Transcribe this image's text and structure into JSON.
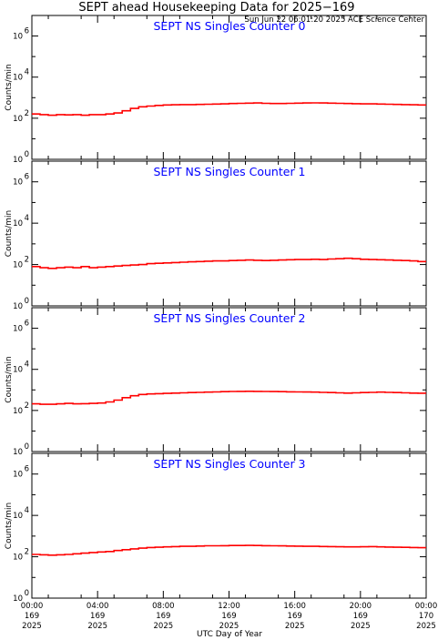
{
  "header": {
    "title": "SEPT ahead Housekeeping Data for 2025−169",
    "timestamp": "Sun Jun 22 06:01:20 2025 ACE Science Center"
  },
  "colors": {
    "panel_title": "#0000ff",
    "series": "#ff0000",
    "axes": "#000000"
  },
  "chart_data": [
    {
      "type": "line",
      "title": "SEPT NS Singles Counter 0",
      "ylabel": "Counts/min",
      "yscale": "log",
      "ylim": [
        1,
        10000000
      ],
      "step": true,
      "x": [
        0,
        0.5,
        1,
        1.5,
        2,
        2.5,
        3,
        3.5,
        4,
        4.5,
        5,
        5.5,
        6,
        6.5,
        7,
        7.5,
        8,
        8.5,
        9,
        9.5,
        10,
        10.5,
        11,
        11.5,
        12,
        12.5,
        13,
        13.5,
        14,
        14.5,
        15,
        15.5,
        16,
        16.5,
        17,
        17.5,
        18,
        18.5,
        19,
        19.5,
        20,
        20.5,
        21,
        21.5,
        22,
        22.5,
        23,
        23.5,
        24
      ],
      "values": [
        160,
        150,
        140,
        150,
        145,
        150,
        140,
        150,
        150,
        160,
        180,
        230,
        300,
        360,
        390,
        420,
        440,
        450,
        460,
        460,
        470,
        480,
        490,
        500,
        520,
        530,
        540,
        550,
        530,
        520,
        520,
        530,
        540,
        550,
        560,
        550,
        540,
        530,
        520,
        510,
        500,
        500,
        490,
        480,
        470,
        460,
        450,
        440,
        430
      ]
    },
    {
      "type": "line",
      "title": "SEPT NS Singles Counter 1",
      "ylabel": "Counts/min",
      "yscale": "log",
      "ylim": [
        1,
        10000000
      ],
      "step": true,
      "x": [
        0,
        0.5,
        1,
        1.5,
        2,
        2.5,
        3,
        3.5,
        4,
        4.5,
        5,
        5.5,
        6,
        6.5,
        7,
        7.5,
        8,
        8.5,
        9,
        9.5,
        10,
        10.5,
        11,
        11.5,
        12,
        12.5,
        13,
        13.5,
        14,
        14.5,
        15,
        15.5,
        16,
        16.5,
        17,
        17.5,
        18,
        18.5,
        19,
        19.5,
        20,
        20.5,
        21,
        21.5,
        22,
        22.5,
        23,
        23.5,
        24
      ],
      "values": [
        80,
        70,
        65,
        70,
        75,
        70,
        80,
        70,
        75,
        80,
        85,
        90,
        95,
        100,
        110,
        115,
        120,
        125,
        130,
        135,
        140,
        145,
        150,
        150,
        155,
        160,
        165,
        160,
        155,
        160,
        165,
        170,
        175,
        175,
        180,
        175,
        185,
        190,
        200,
        190,
        180,
        175,
        170,
        165,
        160,
        155,
        150,
        140,
        120
      ]
    },
    {
      "type": "line",
      "title": "SEPT NS Singles Counter 2",
      "ylabel": "Counts/min",
      "yscale": "log",
      "ylim": [
        1,
        10000000
      ],
      "step": true,
      "x": [
        0,
        0.5,
        1,
        1.5,
        2,
        2.5,
        3,
        3.5,
        4,
        4.5,
        5,
        5.5,
        6,
        6.5,
        7,
        7.5,
        8,
        8.5,
        9,
        9.5,
        10,
        10.5,
        11,
        11.5,
        12,
        12.5,
        13,
        13.5,
        14,
        14.5,
        15,
        15.5,
        16,
        16.5,
        17,
        17.5,
        18,
        18.5,
        19,
        19.5,
        20,
        20.5,
        21,
        21.5,
        22,
        22.5,
        23,
        23.5,
        24
      ],
      "values": [
        210,
        200,
        200,
        210,
        220,
        210,
        215,
        220,
        230,
        260,
        320,
        420,
        520,
        600,
        640,
        660,
        680,
        700,
        720,
        740,
        760,
        780,
        800,
        820,
        840,
        850,
        860,
        850,
        840,
        830,
        820,
        810,
        800,
        790,
        780,
        760,
        740,
        720,
        700,
        720,
        740,
        760,
        780,
        760,
        740,
        720,
        700,
        690,
        680
      ]
    },
    {
      "type": "line",
      "title": "SEPT NS Singles Counter 3",
      "ylabel": "Counts/min",
      "yscale": "log",
      "ylim": [
        1,
        10000000
      ],
      "step": true,
      "x": [
        0,
        0.5,
        1,
        1.5,
        2,
        2.5,
        3,
        3.5,
        4,
        4.5,
        5,
        5.5,
        6,
        6.5,
        7,
        7.5,
        8,
        8.5,
        9,
        9.5,
        10,
        10.5,
        11,
        11.5,
        12,
        12.5,
        13,
        13.5,
        14,
        14.5,
        15,
        15.5,
        16,
        16.5,
        17,
        17.5,
        18,
        18.5,
        19,
        19.5,
        20,
        20.5,
        21,
        21.5,
        22,
        22.5,
        23,
        23.5,
        24
      ],
      "values": [
        130,
        125,
        120,
        125,
        130,
        140,
        150,
        160,
        170,
        180,
        200,
        220,
        240,
        260,
        280,
        290,
        300,
        310,
        320,
        320,
        330,
        340,
        340,
        345,
        350,
        350,
        355,
        350,
        345,
        340,
        335,
        330,
        325,
        320,
        320,
        315,
        310,
        305,
        300,
        300,
        305,
        310,
        300,
        295,
        290,
        285,
        280,
        275,
        270
      ]
    }
  ],
  "y_axis": {
    "tick_values": [
      1,
      100,
      10000,
      1000000
    ],
    "tick_labels": [
      {
        "base": "10",
        "exp": "0"
      },
      {
        "base": "10",
        "exp": "2"
      },
      {
        "base": "10",
        "exp": "4"
      },
      {
        "base": "10",
        "exp": "6"
      }
    ]
  },
  "x_axis": {
    "label": "UTC Day of Year",
    "range": [
      0,
      24
    ],
    "ticks": [
      {
        "value": 0,
        "time": "00:00",
        "doy": "169",
        "year": "2025"
      },
      {
        "value": 4,
        "time": "04:00",
        "doy": "169",
        "year": "2025"
      },
      {
        "value": 8,
        "time": "08:00",
        "doy": "169",
        "year": "2025"
      },
      {
        "value": 12,
        "time": "12:00",
        "doy": "169",
        "year": "2025"
      },
      {
        "value": 16,
        "time": "16:00",
        "doy": "169",
        "year": "2025"
      },
      {
        "value": 20,
        "time": "20:00",
        "doy": "169",
        "year": "2025"
      },
      {
        "value": 24,
        "time": "00:00",
        "doy": "170",
        "year": "2025"
      }
    ]
  }
}
